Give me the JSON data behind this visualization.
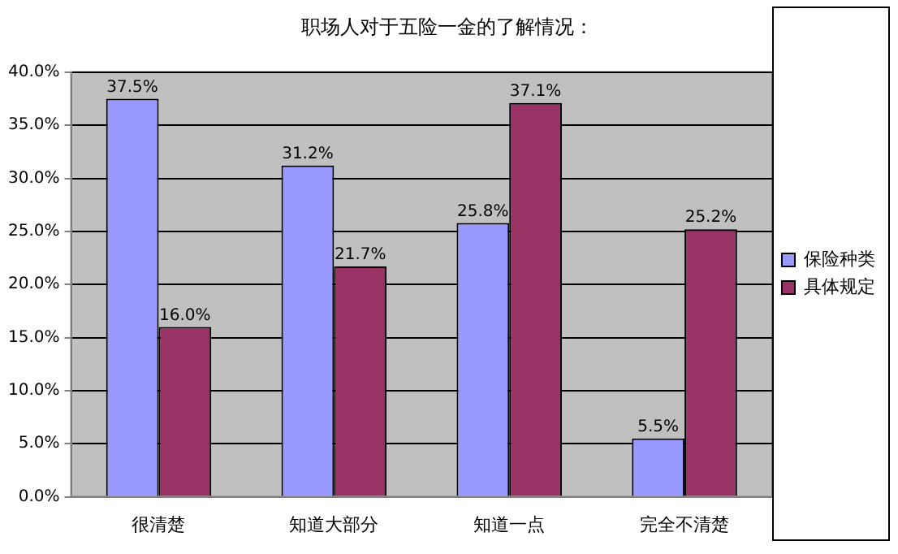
{
  "chart_data": {
    "type": "bar",
    "title": "职场人对于五险一金的了解情况：",
    "categories": [
      "很清楚",
      "知道大部分",
      "知道一点",
      "完全不清楚"
    ],
    "series": [
      {
        "name": "保险种类",
        "color": "#9999ff",
        "values": [
          37.5,
          31.2,
          25.8,
          5.5
        ],
        "value_labels": [
          "37.5%",
          "31.2%",
          "25.8%",
          "5.5%"
        ]
      },
      {
        "name": "具体规定",
        "color": "#993366",
        "values": [
          16.0,
          21.7,
          37.1,
          25.2
        ],
        "value_labels": [
          "16.0%",
          "21.7%",
          "37.1%",
          "25.2%"
        ]
      }
    ],
    "ylim": [
      0,
      40
    ],
    "yticks": [
      {
        "value": 0,
        "label": "0.0%"
      },
      {
        "value": 5,
        "label": "5.0%"
      },
      {
        "value": 10,
        "label": "10.0%"
      },
      {
        "value": 15,
        "label": "15.0%"
      },
      {
        "value": 20,
        "label": "20.0%"
      },
      {
        "value": 25,
        "label": "25.0%"
      },
      {
        "value": 30,
        "label": "30.0%"
      },
      {
        "value": 35,
        "label": "35.0%"
      },
      {
        "value": 40,
        "label": "40.0%"
      }
    ],
    "grid": "y",
    "legend": "right"
  }
}
